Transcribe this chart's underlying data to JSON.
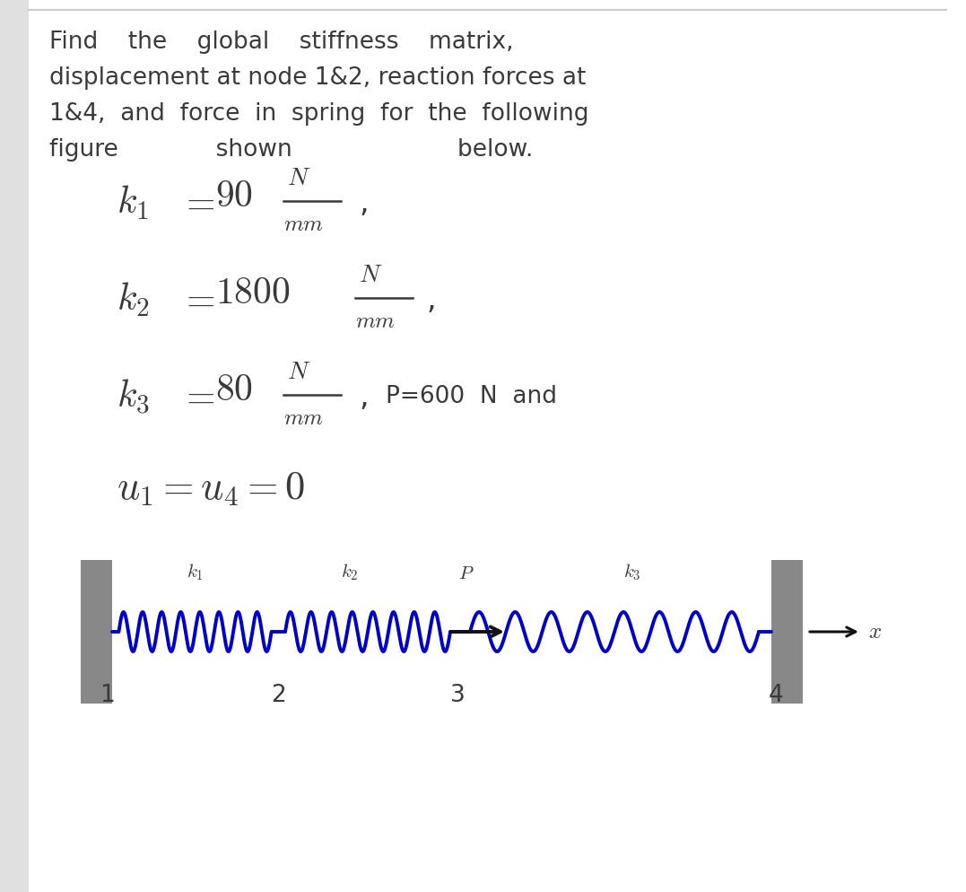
{
  "bg_color": "#e0e0e0",
  "white_bg": "#ffffff",
  "text_color": "#3a3a3a",
  "spring_color": "#0000cc",
  "wall_color": "#888888",
  "arrow_color": "#111111",
  "title_line1": "Find    the    global    stiffness    matrix,",
  "title_line2": "displacement at node 1&2, reaction forces at",
  "title_line3": "1&4,  and  force  in  spring  for  the  following",
  "title_line4": "figure             shown                      below.",
  "k1_label": "$k_1=90\\dfrac{N}{mm}$",
  "k2_label": "$k_2=1800\\dfrac{N}{mm}$",
  "k3_label": "$k_3=80\\dfrac{N}{mm}$",
  "u_label": "$u_1=u_4=0$",
  "P_label": "P=600  N  and",
  "node_nums": [
    "1",
    "2",
    "3",
    "4"
  ],
  "spring_tag_k1": "$k_1$",
  "spring_tag_k2": "$k_2$",
  "spring_tag_k3": "$k_3$",
  "spring_tag_P": "$P$",
  "x_label": "$x$",
  "title_fontsize": 19,
  "eq_fontsize": 26,
  "diag_label_fontsize": 15
}
